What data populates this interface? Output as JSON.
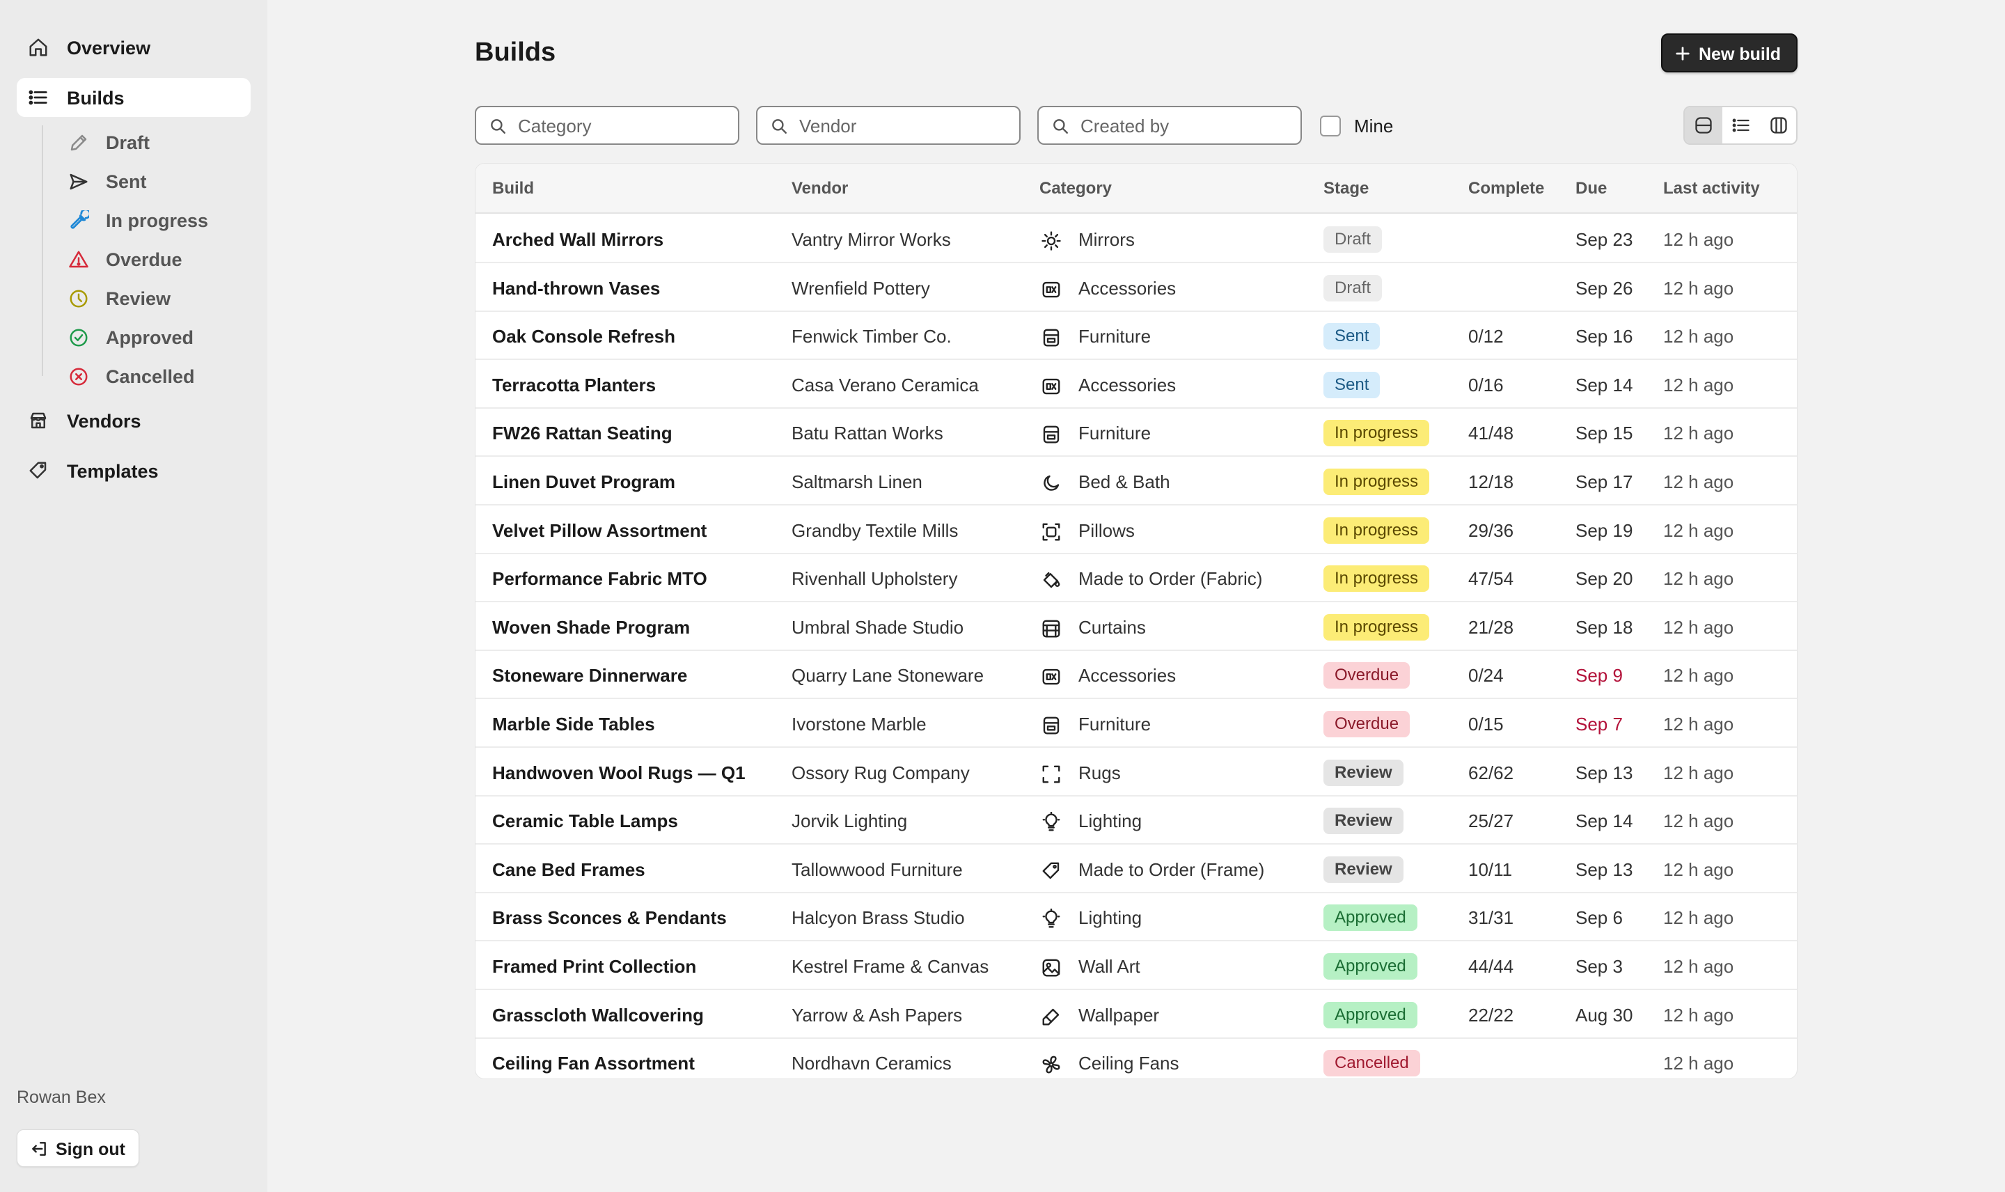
{
  "sidebar": {
    "nav": [
      {
        "label": "Overview",
        "icon": "home-icon"
      },
      {
        "label": "Builds",
        "icon": "list-icon",
        "active": true
      },
      {
        "label": "Vendors",
        "icon": "store-icon"
      },
      {
        "label": "Templates",
        "icon": "tag-icon"
      }
    ],
    "sub": [
      {
        "label": "Draft",
        "icon": "pencil-icon",
        "color": "#8a8a8a"
      },
      {
        "label": "Sent",
        "icon": "send-icon",
        "color": "#333333"
      },
      {
        "label": "In progress",
        "icon": "wrench-icon",
        "color": "#1e88d6"
      },
      {
        "label": "Overdue",
        "icon": "warning-icon",
        "color": "#d62a3a"
      },
      {
        "label": "Review",
        "icon": "clock-icon",
        "color": "#a89a00"
      },
      {
        "label": "Approved",
        "icon": "check-circle-icon",
        "color": "#1e9a4a"
      },
      {
        "label": "Cancelled",
        "icon": "x-circle-icon",
        "color": "#d62a3a"
      }
    ],
    "user_name": "Rowan Bex",
    "sign_out_label": "Sign out"
  },
  "header": {
    "title": "Builds",
    "new_build_label": "New build"
  },
  "filters": {
    "category_placeholder": "Category",
    "vendor_placeholder": "Vendor",
    "created_by_placeholder": "Created by",
    "mine_label": "Mine",
    "mine_checked": false
  },
  "view_toggle": {
    "options": [
      "rows-view-icon",
      "list-view-icon",
      "columns-view-icon"
    ],
    "active": 0
  },
  "table": {
    "columns": [
      "Build",
      "Vendor",
      "Category",
      "Stage",
      "Complete",
      "Due",
      "Last activity"
    ],
    "rows": [
      {
        "build": "Arched Wall Mirrors",
        "vendor": "Vantry Mirror Works",
        "category": "Mirrors",
        "category_icon": "sun-icon",
        "stage": "Draft",
        "complete": "",
        "due": "Sep 23",
        "late": false,
        "activity": "12 h ago"
      },
      {
        "build": "Hand-thrown Vases",
        "vendor": "Wrenfield Pottery",
        "category": "Accessories",
        "category_icon": "accessories-icon",
        "stage": "Draft",
        "complete": "",
        "due": "Sep 26",
        "late": false,
        "activity": "12 h ago"
      },
      {
        "build": "Oak Console Refresh",
        "vendor": "Fenwick Timber Co.",
        "category": "Furniture",
        "category_icon": "furniture-icon",
        "stage": "Sent",
        "complete": "0/12",
        "due": "Sep 16",
        "late": false,
        "activity": "12 h ago"
      },
      {
        "build": "Terracotta Planters",
        "vendor": "Casa Verano Ceramica",
        "category": "Accessories",
        "category_icon": "accessories-icon",
        "stage": "Sent",
        "complete": "0/16",
        "due": "Sep 14",
        "late": false,
        "activity": "12 h ago"
      },
      {
        "build": "FW26 Rattan Seating",
        "vendor": "Batu Rattan Works",
        "category": "Furniture",
        "category_icon": "furniture-icon",
        "stage": "In progress",
        "complete": "41/48",
        "due": "Sep 15",
        "late": false,
        "activity": "12 h ago"
      },
      {
        "build": "Linen Duvet Program",
        "vendor": "Saltmarsh Linen",
        "category": "Bed & Bath",
        "category_icon": "moon-icon",
        "stage": "In progress",
        "complete": "12/18",
        "due": "Sep 17",
        "late": false,
        "activity": "12 h ago"
      },
      {
        "build": "Velvet Pillow Assortment",
        "vendor": "Grandby Textile Mills",
        "category": "Pillows",
        "category_icon": "pillow-icon",
        "stage": "In progress",
        "complete": "29/36",
        "due": "Sep 19",
        "late": false,
        "activity": "12 h ago"
      },
      {
        "build": "Performance Fabric MTO",
        "vendor": "Rivenhall Upholstery",
        "category": "Made to Order (Fabric)",
        "category_icon": "paint-bucket-icon",
        "stage": "In progress",
        "complete": "47/54",
        "due": "Sep 20",
        "late": false,
        "activity": "12 h ago"
      },
      {
        "build": "Woven Shade Program",
        "vendor": "Umbral Shade Studio",
        "category": "Curtains",
        "category_icon": "curtain-icon",
        "stage": "In progress",
        "complete": "21/28",
        "due": "Sep 18",
        "late": false,
        "activity": "12 h ago"
      },
      {
        "build": "Stoneware Dinnerware",
        "vendor": "Quarry Lane Stoneware",
        "category": "Accessories",
        "category_icon": "accessories-icon",
        "stage": "Overdue",
        "complete": "0/24",
        "due": "Sep 9",
        "late": true,
        "activity": "12 h ago"
      },
      {
        "build": "Marble Side Tables",
        "vendor": "Ivorstone Marble",
        "category": "Furniture",
        "category_icon": "furniture-icon",
        "stage": "Overdue",
        "complete": "0/15",
        "due": "Sep 7",
        "late": true,
        "activity": "12 h ago"
      },
      {
        "build": "Handwoven Wool Rugs — Q1",
        "vendor": "Ossory Rug Company",
        "category": "Rugs",
        "category_icon": "rug-icon",
        "stage": "Review",
        "complete": "62/62",
        "due": "Sep 13",
        "late": false,
        "activity": "12 h ago"
      },
      {
        "build": "Ceramic Table Lamps",
        "vendor": "Jorvik Lighting",
        "category": "Lighting",
        "category_icon": "bulb-icon",
        "stage": "Review",
        "complete": "25/27",
        "due": "Sep 14",
        "late": false,
        "activity": "12 h ago"
      },
      {
        "build": "Cane Bed Frames",
        "vendor": "Tallowwood Furniture",
        "category": "Made to Order (Frame)",
        "category_icon": "tag-icon",
        "stage": "Review",
        "complete": "10/11",
        "due": "Sep 13",
        "late": false,
        "activity": "12 h ago"
      },
      {
        "build": "Brass Sconces & Pendants",
        "vendor": "Halcyon Brass Studio",
        "category": "Lighting",
        "category_icon": "bulb-icon",
        "stage": "Approved",
        "complete": "31/31",
        "due": "Sep 6",
        "late": false,
        "activity": "12 h ago"
      },
      {
        "build": "Framed Print Collection",
        "vendor": "Kestrel Frame & Canvas",
        "category": "Wall Art",
        "category_icon": "image-icon",
        "stage": "Approved",
        "complete": "44/44",
        "due": "Sep 3",
        "late": false,
        "activity": "12 h ago"
      },
      {
        "build": "Grasscloth Wallcovering",
        "vendor": "Yarrow & Ash Papers",
        "category": "Wallpaper",
        "category_icon": "brush-icon",
        "stage": "Approved",
        "complete": "22/22",
        "due": "Aug 30",
        "late": false,
        "activity": "12 h ago"
      },
      {
        "build": "Ceiling Fan Assortment",
        "vendor": "Nordhavn Ceramics",
        "category": "Ceiling Fans",
        "category_icon": "fan-icon",
        "stage": "Cancelled",
        "complete": "",
        "due": "",
        "late": false,
        "activity": "12 h ago"
      }
    ]
  }
}
